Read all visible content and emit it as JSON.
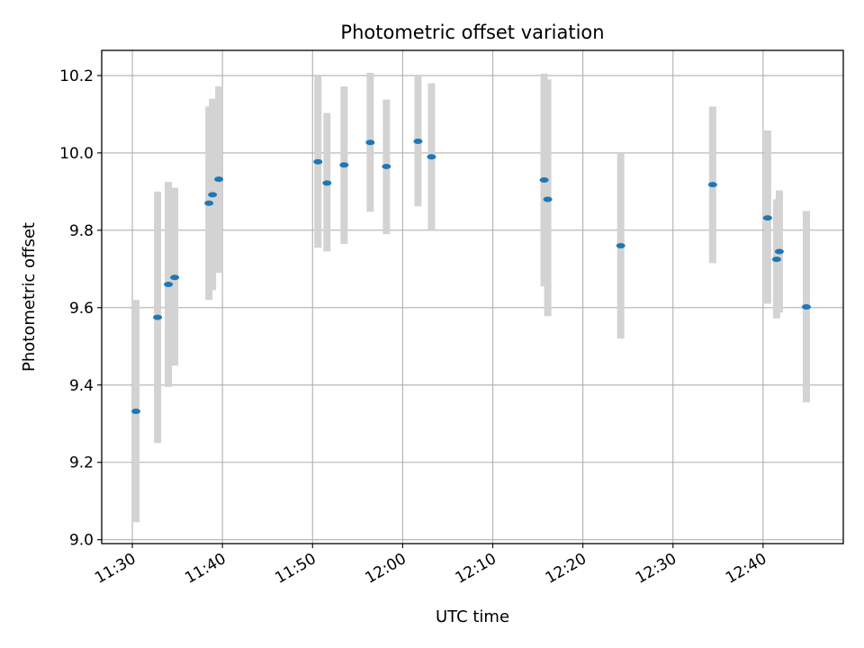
{
  "chart_data": {
    "type": "scatter",
    "title": "Photometric offset variation",
    "xlabel": "UTC time",
    "ylabel": "Photometric offset",
    "grid": true,
    "x_ticks": [
      "11:30",
      "11:40",
      "11:50",
      "12:00",
      "12:10",
      "12:20",
      "12:30",
      "12:40"
    ],
    "y_ticks": [
      "9.0",
      "9.2",
      "9.4",
      "9.6",
      "9.8",
      "10.0",
      "10.2"
    ],
    "xlim": [
      "11:26:36",
      "12:48:54"
    ],
    "ylim": [
      8.99,
      10.265
    ],
    "colors": {
      "point": "#1f77b4",
      "errorbar": "#d3d3d3"
    },
    "points": [
      {
        "time": "11:30:24",
        "y": 9.332,
        "y_low": 9.045,
        "y_high": 9.62
      },
      {
        "time": "11:32:48",
        "y": 9.575,
        "y_low": 9.25,
        "y_high": 9.9
      },
      {
        "time": "11:34:00",
        "y": 9.66,
        "y_low": 9.395,
        "y_high": 9.925
      },
      {
        "time": "11:34:42",
        "y": 9.678,
        "y_low": 9.45,
        "y_high": 9.91
      },
      {
        "time": "11:38:30",
        "y": 9.87,
        "y_low": 9.62,
        "y_high": 10.12
      },
      {
        "time": "11:38:54",
        "y": 9.892,
        "y_low": 9.645,
        "y_high": 10.14
      },
      {
        "time": "11:39:36",
        "y": 9.932,
        "y_low": 9.69,
        "y_high": 10.172
      },
      {
        "time": "11:50:36",
        "y": 9.977,
        "y_low": 9.755,
        "y_high": 10.2
      },
      {
        "time": "11:51:36",
        "y": 9.922,
        "y_low": 9.745,
        "y_high": 10.103
      },
      {
        "time": "11:53:30",
        "y": 9.969,
        "y_low": 9.765,
        "y_high": 10.172
      },
      {
        "time": "11:56:24",
        "y": 10.027,
        "y_low": 9.848,
        "y_high": 10.207
      },
      {
        "time": "11:58:12",
        "y": 9.965,
        "y_low": 9.79,
        "y_high": 10.138
      },
      {
        "time": "12:01:42",
        "y": 10.03,
        "y_low": 9.862,
        "y_high": 10.2
      },
      {
        "time": "12:03:12",
        "y": 9.99,
        "y_low": 9.8,
        "y_high": 10.18
      },
      {
        "time": "12:15:42",
        "y": 9.93,
        "y_low": 9.655,
        "y_high": 10.205
      },
      {
        "time": "12:16:06",
        "y": 9.88,
        "y_low": 9.578,
        "y_high": 10.19
      },
      {
        "time": "12:24:12",
        "y": 9.76,
        "y_low": 9.52,
        "y_high": 10.0
      },
      {
        "time": "12:34:24",
        "y": 9.918,
        "y_low": 9.715,
        "y_high": 10.12
      },
      {
        "time": "12:40:30",
        "y": 9.832,
        "y_low": 9.61,
        "y_high": 10.058
      },
      {
        "time": "12:41:30",
        "y": 9.725,
        "y_low": 9.572,
        "y_high": 9.88
      },
      {
        "time": "12:41:48",
        "y": 9.745,
        "y_low": 9.587,
        "y_high": 9.903
      },
      {
        "time": "12:44:48",
        "y": 9.602,
        "y_low": 9.355,
        "y_high": 9.85
      }
    ]
  }
}
